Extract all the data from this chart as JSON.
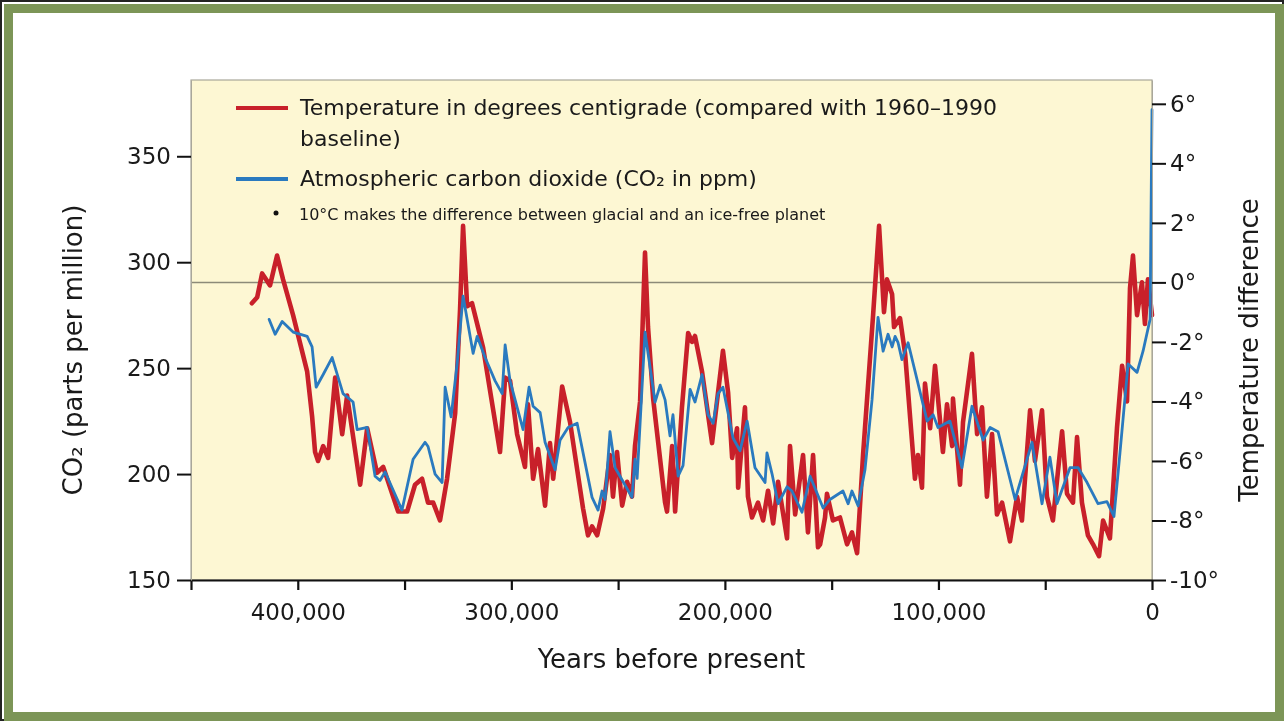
{
  "chart_data": {
    "type": "line",
    "xlabel": "Years before present",
    "ylabel": "CO₂ (parts per million)",
    "y2label": "Temperature difference",
    "xlim": [
      450000,
      0
    ],
    "xticks": [
      {
        "value": 450000,
        "label": null
      },
      {
        "value": 400000,
        "label": "400,000"
      },
      {
        "value": 350000,
        "label": null
      },
      {
        "value": 300000,
        "label": "300,000"
      },
      {
        "value": 250000,
        "label": null
      },
      {
        "value": 200000,
        "label": "200,000"
      },
      {
        "value": 150000,
        "label": null
      },
      {
        "value": 100000,
        "label": "100,000"
      },
      {
        "value": 50000,
        "label": null
      },
      0
    ],
    "ylim": [
      150,
      386
    ],
    "yticks": [
      150,
      200,
      250,
      300,
      350
    ],
    "y2lim": [
      -10,
      6.8
    ],
    "y2ticks": [
      {
        "value": -10,
        "label": "-10°"
      },
      {
        "value": -8,
        "label": "-8°"
      },
      {
        "value": -6,
        "label": "-6°"
      },
      {
        "value": -4,
        "label": "-4°"
      },
      {
        "value": -2,
        "label": "-2°"
      },
      {
        "value": 0,
        "label": "0°"
      },
      {
        "value": 2,
        "label": "2°"
      },
      {
        "value": 4,
        "label": "4°"
      },
      {
        "value": 6,
        "label": "6°"
      }
    ],
    "legend": "top left",
    "marker": "none",
    "line_style": "solid",
    "ref_lines": [
      {
        "axis": "y2",
        "value": 0,
        "color": "#8c8a78"
      }
    ],
    "annotations": [
      "10°C makes the difference between glacial and an ice-free planet"
    ],
    "series": [
      {
        "name": "Temperature in degrees centigrade (compared with 1960–1990 baseline)",
        "color": "#c8202a",
        "axis": "y2",
        "x": [
          421500,
          419000,
          416700,
          413000,
          409700,
          406900,
          402200,
          395600,
          393300,
          391900,
          390500,
          388100,
          385800,
          382500,
          379200,
          376900,
          370800,
          367500,
          362900,
          360000,
          353000,
          348800,
          345100,
          341800,
          339000,
          336600,
          333400,
          330100,
          326300,
          324000,
          322600,
          320700,
          318400,
          313200,
          305300,
          302900,
          300600,
          297300,
          293600,
          292200,
          289800,
          287500,
          284200,
          281900,
          280400,
          276200,
          272500,
          266400,
          264100,
          262200,
          259800,
          257000,
          253800,
          252400,
          250500,
          248100,
          245800,
          243500,
          242100,
          239700,
          237400,
          236000,
          233600,
          228000,
          227100,
          224700,
          223300,
          220100,
          217200,
          215400,
          214000,
          210700,
          206000,
          203700,
          200900,
          198500,
          196600,
          194300,
          193800,
          190600,
          189200,
          187300,
          184500,
          182100,
          179800,
          177400,
          175100,
          170900,
          169500,
          167100,
          163400,
          161100,
          158700,
          156400,
          155400,
          153100,
          152200,
          149400,
          146100,
          142800,
          140500,
          138100,
          135300,
          130600,
          127800,
          125500,
          124100,
          121700,
          120800,
          118000,
          115600,
          111000,
          109600,
          107700,
          106300,
          103900,
          101600,
          97900,
          96000,
          93600,
          93200,
          89900,
          88500,
          84300,
          81900,
          79600,
          77300,
          74900,
          72600,
          70200,
          66500,
          63200,
          60900,
          57100,
          54800,
          51500,
          49200,
          46400,
          42100,
          39800,
          37000,
          35100,
          32800,
          30000,
          27600,
          24800,
          22900,
          19700,
          16400,
          14000,
          11700,
          10300,
          8900,
          7000,
          4700,
          3300,
          1900,
          0
        ],
        "values": [
          -0.7,
          -0.5,
          0.3,
          -0.1,
          0.9,
          0.1,
          -1.1,
          -3.0,
          -4.5,
          -5.7,
          -6.0,
          -5.5,
          -5.9,
          -3.2,
          -5.1,
          -3.8,
          -6.8,
          -4.9,
          -6.4,
          -6.2,
          -7.7,
          -7.7,
          -6.8,
          -6.6,
          -7.4,
          -7.4,
          -8.0,
          -6.6,
          -4.4,
          -0.9,
          1.9,
          -0.8,
          -0.7,
          -2.2,
          -5.7,
          -3.2,
          -3.3,
          -5.1,
          -6.2,
          -4.1,
          -6.6,
          -5.6,
          -7.5,
          -5.4,
          -6.6,
          -3.5,
          -4.7,
          -7.6,
          -8.5,
          -8.2,
          -8.5,
          -7.6,
          -5.8,
          -7.2,
          -5.7,
          -7.5,
          -6.7,
          -7.2,
          -5.5,
          -4.0,
          1.0,
          -1.5,
          -3.9,
          -7.4,
          -7.7,
          -5.5,
          -7.7,
          -4.2,
          -1.7,
          -2.0,
          -1.8,
          -3.0,
          -5.4,
          -4.0,
          -2.3,
          -3.7,
          -5.9,
          -4.9,
          -6.9,
          -4.2,
          -7.2,
          -7.9,
          -7.4,
          -8.0,
          -7.0,
          -8.1,
          -6.7,
          -8.6,
          -5.5,
          -7.8,
          -5.8,
          -8.4,
          -5.8,
          -8.9,
          -8.8,
          -7.9,
          -7.1,
          -8.0,
          -7.9,
          -8.8,
          -8.4,
          -9.1,
          -5.8,
          -1.1,
          1.9,
          -1.0,
          0.1,
          -0.4,
          -1.5,
          -1.2,
          -2.4,
          -6.6,
          -5.8,
          -6.9,
          -3.4,
          -4.9,
          -2.8,
          -5.7,
          -4.1,
          -5.5,
          -3.9,
          -6.8,
          -4.7,
          -2.4,
          -5.1,
          -4.2,
          -7.2,
          -5.1,
          -7.8,
          -7.4,
          -8.7,
          -7.2,
          -8.0,
          -4.3,
          -6.0,
          -4.3,
          -7.2,
          -8.0,
          -5.0,
          -7.1,
          -7.4,
          -5.2,
          -7.4,
          -8.5,
          -8.8,
          -9.2,
          -8.0,
          -8.6,
          -4.9,
          -2.8,
          -4.0,
          -0.2,
          0.9,
          -1.1,
          0.0,
          -1.4,
          0.1,
          -1.1
        ]
      },
      {
        "name": "Atmospheric carbon dioxide (CO₂ in ppm)",
        "color": "#2a7abf",
        "x": [
          413400,
          410600,
          407300,
          402200,
          395600,
          393300,
          391400,
          388100,
          383900,
          378800,
          374100,
          372200,
          367500,
          363800,
          361500,
          359100,
          351200,
          346000,
          340400,
          339000,
          335700,
          332400,
          331000,
          328200,
          325400,
          322600,
          317900,
          316000,
          312300,
          307600,
          304300,
          302900,
          300600,
          294500,
          291700,
          289800,
          286500,
          284200,
          279500,
          277200,
          273400,
          269200,
          262200,
          259400,
          257500,
          256100,
          253800,
          251400,
          249100,
          243500,
          242100,
          241100,
          237400,
          232700,
          230300,
          228000,
          225700,
          224300,
          221900,
          219600,
          216300,
          214000,
          210700,
          207900,
          205500,
          203200,
          200900,
          196200,
          192900,
          189600,
          185900,
          181200,
          180300,
          177900,
          175100,
          170900,
          168600,
          163900,
          160100,
          154000,
          150800,
          144700,
          142300,
          140500,
          137600,
          134400,
          131100,
          128300,
          125900,
          123600,
          121700,
          120300,
          118900,
          117100,
          114200,
          105300,
          102500,
          100200,
          94600,
          89000,
          84300,
          79100,
          75800,
          72100,
          64100,
          56200,
          51500,
          47800,
          44500,
          38400,
          34600,
          30400,
          25300,
          21100,
          17800,
          15000,
          11200,
          7000,
          4200,
          900,
          0
        ],
        "values": [
          273,
          266,
          272,
          267,
          265,
          260,
          241,
          247,
          255,
          238,
          234,
          221,
          222,
          199,
          197,
          201,
          183,
          207,
          215,
          213,
          200,
          196,
          241,
          227,
          252,
          284,
          257,
          265,
          255,
          244,
          238,
          261,
          244,
          221,
          241,
          232,
          229,
          215,
          202,
          216,
          222,
          224,
          189,
          183,
          192,
          188,
          220,
          203,
          199,
          189,
          207,
          198,
          267,
          234,
          242,
          235,
          218,
          228,
          199,
          204,
          240,
          234,
          247,
          228,
          224,
          238,
          241,
          217,
          211,
          225,
          203,
          196,
          210,
          200,
          186,
          194,
          192,
          182,
          199,
          184,
          188,
          192,
          186,
          192,
          185,
          202,
          235,
          274,
          258,
          266,
          260,
          265,
          262,
          254,
          262,
          225,
          228,
          222,
          225,
          203,
          232,
          216,
          222,
          220,
          188,
          215,
          186,
          208,
          186,
          203,
          203,
          196,
          186,
          187,
          180,
          210,
          252,
          248,
          258,
          273,
          372
        ]
      }
    ]
  }
}
